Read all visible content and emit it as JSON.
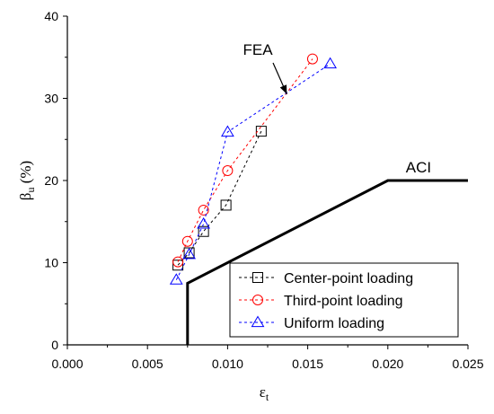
{
  "chart_data": {
    "type": "scatter",
    "xlabel": "ε",
    "xlabel_sub": "t",
    "ylabel": "β",
    "ylabel_sub": "u",
    "ylabel_suffix": " (%)",
    "xlim": [
      0.0,
      0.025
    ],
    "ylim": [
      0,
      40
    ],
    "x_ticks": [
      0.0,
      0.005,
      0.01,
      0.015,
      0.02,
      0.025
    ],
    "x_tick_labels": [
      "0.000",
      "0.005",
      "0.010",
      "0.015",
      "0.020",
      "0.025"
    ],
    "y_ticks": [
      0,
      10,
      20,
      30,
      40
    ],
    "y_tick_labels": [
      "0",
      "10",
      "20",
      "30",
      "40"
    ],
    "grid": false,
    "legend_position": "bottom-right",
    "series": [
      {
        "name": "Center-point loading",
        "color": "#000000",
        "marker": "square",
        "line": "dashed",
        "x": [
          0.0069,
          0.0076,
          0.0085,
          0.0099,
          0.0121
        ],
        "y": [
          9.7,
          11.2,
          13.8,
          17.0,
          26.0
        ]
      },
      {
        "name": "Third-point loading",
        "color": "#ff0000",
        "marker": "circle",
        "line": "dashed",
        "x": [
          0.0069,
          0.0075,
          0.0085,
          0.01,
          0.0153
        ],
        "y": [
          10.1,
          12.6,
          16.4,
          21.2,
          34.8
        ]
      },
      {
        "name": "Uniform loading",
        "color": "#0000ff",
        "marker": "triangle",
        "line": "dashed",
        "x": [
          0.0068,
          0.0076,
          0.0085,
          0.01,
          0.0164
        ],
        "y": [
          7.9,
          11.0,
          14.7,
          25.9,
          34.2
        ]
      }
    ],
    "reference_line": {
      "name": "ACI",
      "color": "#000000",
      "x": [
        0.0075,
        0.0075,
        0.02,
        0.025
      ],
      "y": [
        0,
        7.5,
        20,
        20
      ]
    },
    "annotations": [
      {
        "text": "FEA",
        "arrow_to": [
          0.0137,
          30.5
        ]
      },
      {
        "text": "ACI"
      }
    ]
  }
}
